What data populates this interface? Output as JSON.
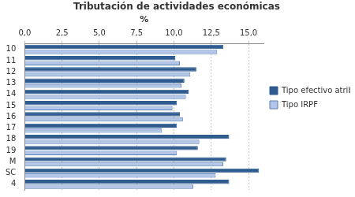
{
  "chart_data": {
    "type": "bar",
    "orientation": "horizontal",
    "title": "Tributación de actividades económicas",
    "xlabel": "%",
    "categories": [
      "10",
      "11",
      "12",
      "13",
      "14",
      "15",
      "16",
      "17",
      "18",
      "19",
      "M",
      "SC",
      "4"
    ],
    "series": [
      {
        "name": "Tipo efectivo atribuible",
        "color": "#2f5b8f",
        "values": [
          13.3,
          10.1,
          11.5,
          10.7,
          11.0,
          10.2,
          10.4,
          10.2,
          13.7,
          11.6,
          13.5,
          15.7,
          13.7
        ]
      },
      {
        "name": "Tipo IRPF",
        "color": "#b3c6e7",
        "values": [
          12.9,
          10.4,
          11.1,
          10.5,
          10.8,
          9.9,
          10.6,
          9.2,
          11.7,
          10.2,
          13.3,
          12.8,
          11.3
        ]
      }
    ],
    "xlim": [
      0,
      16
    ],
    "xticks": [
      {
        "value": 0,
        "label": "0,0"
      },
      {
        "value": 2.5,
        "label": "2,5"
      },
      {
        "value": 5,
        "label": "5,0"
      },
      {
        "value": 7.5,
        "label": "7,5"
      },
      {
        "value": 10,
        "label": "10,0"
      },
      {
        "value": 12.5,
        "label": "12,5"
      },
      {
        "value": 15,
        "label": "15,0"
      }
    ],
    "grid": true,
    "legend": "right"
  }
}
